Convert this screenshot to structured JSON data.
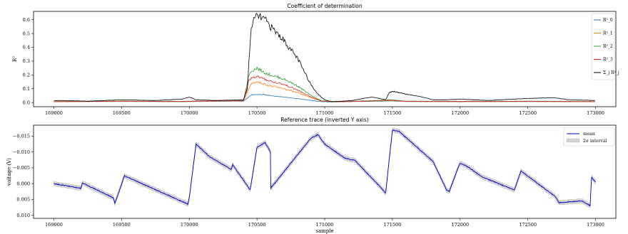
{
  "chart_data": [
    {
      "type": "line",
      "title": "Coefficient of determination",
      "xlabel": "",
      "ylabel": "R²",
      "xlim": [
        168850,
        173150
      ],
      "ylim": [
        -0.03,
        0.66
      ],
      "xticks": [
        "169000",
        "169500",
        "170000",
        "170500",
        "171000",
        "171500",
        "172000",
        "172500",
        "173000"
      ],
      "yticks": [
        "0.0",
        "0.1",
        "0.2",
        "0.3",
        "0.4",
        "0.5",
        "0.6"
      ],
      "legend_position": "top-right",
      "series": [
        {
          "name": "R²_0",
          "color": "#1f77b4",
          "x": [
            169000,
            169500,
            169950,
            170050,
            170400,
            170440,
            170460,
            170500,
            170550,
            170600,
            170700,
            170800,
            170900,
            170980,
            171100,
            171400,
            171480,
            171600,
            172000,
            172500,
            173000
          ],
          "y": [
            0.006,
            0.008,
            0.006,
            0.008,
            0.01,
            0.04,
            0.055,
            0.06,
            0.058,
            0.05,
            0.04,
            0.028,
            0.015,
            0.006,
            0.005,
            0.01,
            0.012,
            0.007,
            0.006,
            0.007,
            0.006
          ]
        },
        {
          "name": "R²_1",
          "color": "#ff7f0e",
          "x": [
            169000,
            169500,
            169950,
            170050,
            170400,
            170440,
            170460,
            170500,
            170550,
            170600,
            170700,
            170800,
            170900,
            170980,
            171100,
            171400,
            171480,
            171600,
            172000,
            172500,
            173000
          ],
          "y": [
            0.006,
            0.009,
            0.007,
            0.009,
            0.012,
            0.1,
            0.14,
            0.15,
            0.135,
            0.12,
            0.1,
            0.07,
            0.035,
            0.01,
            0.006,
            0.012,
            0.015,
            0.008,
            0.007,
            0.008,
            0.006
          ]
        },
        {
          "name": "R²_2",
          "color": "#2ca02c",
          "x": [
            169000,
            169500,
            169950,
            170050,
            170400,
            170440,
            170460,
            170500,
            170550,
            170600,
            170700,
            170800,
            170900,
            170980,
            171100,
            171400,
            171480,
            171600,
            172000,
            172500,
            173000
          ],
          "y": [
            0.007,
            0.01,
            0.008,
            0.01,
            0.014,
            0.2,
            0.23,
            0.25,
            0.22,
            0.2,
            0.17,
            0.12,
            0.05,
            0.012,
            0.007,
            0.015,
            0.02,
            0.01,
            0.008,
            0.01,
            0.007
          ]
        },
        {
          "name": "R²_3",
          "color": "#d62728",
          "x": [
            169000,
            169500,
            169950,
            170050,
            170400,
            170440,
            170460,
            170500,
            170550,
            170600,
            170700,
            170800,
            170900,
            170980,
            171100,
            171400,
            171480,
            171600,
            172000,
            172500,
            173000
          ],
          "y": [
            0.007,
            0.01,
            0.008,
            0.01,
            0.013,
            0.16,
            0.18,
            0.19,
            0.17,
            0.155,
            0.13,
            0.09,
            0.04,
            0.01,
            0.006,
            0.013,
            0.017,
            0.009,
            0.008,
            0.009,
            0.007
          ]
        },
        {
          "name": "Σ_j R²_j",
          "color": "#000000",
          "x": [
            169000,
            169250,
            169500,
            169750,
            169950,
            170000,
            170050,
            170200,
            170400,
            170430,
            170440,
            170460,
            170480,
            170500,
            170520,
            170560,
            170600,
            170650,
            170700,
            170750,
            170800,
            170850,
            170900,
            170950,
            171000,
            171050,
            171200,
            171350,
            171450,
            171480,
            171520,
            171600,
            171700,
            171800,
            171900,
            172000,
            172200,
            172500,
            172700,
            172800,
            173000
          ],
          "y": [
            0.015,
            0.01,
            0.02,
            0.015,
            0.025,
            0.04,
            0.02,
            0.015,
            0.02,
            0.1,
            0.3,
            0.56,
            0.6,
            0.63,
            0.62,
            0.6,
            0.55,
            0.5,
            0.45,
            0.38,
            0.32,
            0.22,
            0.13,
            0.06,
            0.02,
            0.005,
            0.015,
            0.04,
            0.02,
            0.075,
            0.08,
            0.06,
            0.045,
            0.02,
            0.02,
            0.025,
            0.015,
            0.03,
            0.035,
            0.02,
            0.015
          ]
        }
      ]
    },
    {
      "type": "line",
      "title": "Reference trace (inverted Y axis)",
      "xlabel": "sample",
      "ylabel": "voltage (V)",
      "xlim": [
        168850,
        173150
      ],
      "ylim": [
        0.011,
        -0.0185
      ],
      "y_inverted": true,
      "xticks": [
        "169000",
        "169500",
        "170000",
        "170500",
        "171000",
        "171500",
        "172000",
        "172500",
        "173000"
      ],
      "yticks": [
        "−0.015",
        "−0.010",
        "−0.005",
        "0.000",
        "0.005",
        "0.010"
      ],
      "legend_position": "top-right",
      "series": [
        {
          "name": "mean",
          "color": "#0000cc",
          "x": [
            169000,
            169200,
            169210,
            169440,
            169450,
            169490,
            169520,
            169990,
            170000,
            170050,
            170150,
            170310,
            170320,
            170450,
            170500,
            170560,
            170600,
            170600,
            170900,
            170950,
            171000,
            171100,
            171150,
            171200,
            171220,
            171420,
            171450,
            171500,
            171550,
            171800,
            171900,
            171920,
            171980,
            172000,
            172050,
            172150,
            172170,
            172370,
            172400,
            172450,
            172700,
            172730,
            172900,
            172960,
            172970,
            173000
          ],
          "y": [
            0.0,
            0.0015,
            -0.0002,
            0.0045,
            0.0062,
            0.0015,
            -0.0025,
            0.0065,
            0.0045,
            -0.0125,
            -0.0085,
            -0.0045,
            -0.006,
            0.002,
            -0.0115,
            -0.013,
            -0.01,
            0.0015,
            -0.0145,
            -0.0155,
            -0.0125,
            -0.0095,
            -0.008,
            -0.0075,
            -0.0075,
            0.0015,
            0.003,
            -0.017,
            -0.0165,
            -0.007,
            0.002,
            0.0025,
            -0.0045,
            -0.0065,
            -0.0055,
            -0.0025,
            -0.002,
            0.0015,
            0.002,
            -0.004,
            0.004,
            0.006,
            0.0055,
            0.007,
            -0.002,
            -0.0005
          ]
        },
        {
          "name": "2σ interval",
          "color": "#808080"
        }
      ]
    }
  ]
}
